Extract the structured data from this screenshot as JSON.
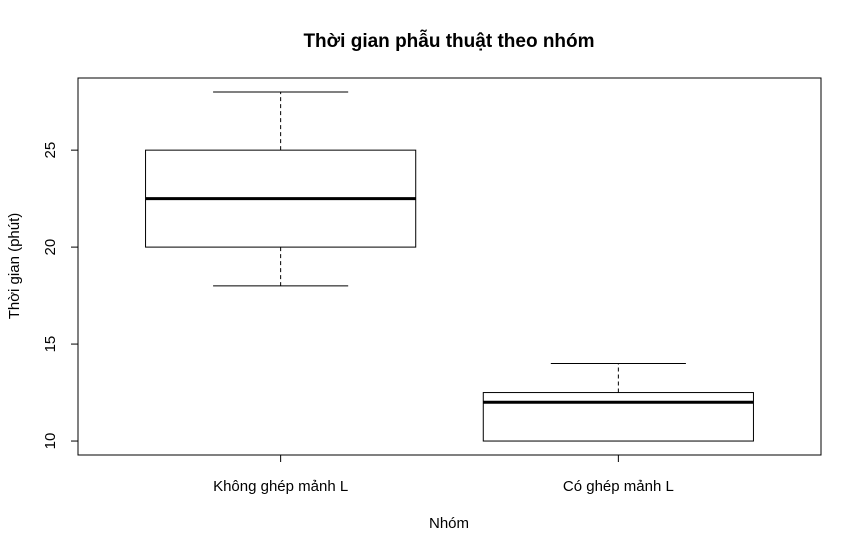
{
  "chart_data": {
    "type": "boxplot",
    "title": "Thời gian phẫu thuật theo nhóm",
    "xlabel": "Nhóm",
    "ylabel": "Thời gian (phút)",
    "categories": [
      "Không ghép mảnh L",
      "Có ghép mảnh L"
    ],
    "boxes": [
      {
        "name": "Không ghép mảnh L",
        "min": 18,
        "q1": 20,
        "median": 22.5,
        "q3": 25,
        "max": 28
      },
      {
        "name": "Có ghép mảnh L",
        "min": 10,
        "q1": 10,
        "median": 12,
        "q3": 12.5,
        "max": 14
      }
    ],
    "ylim": [
      9.28,
      28.72
    ],
    "yticks": [
      "10",
      "15",
      "20",
      "25"
    ],
    "grid": false,
    "legend": "none",
    "colors": {
      "box": "#000000",
      "median": "#000000",
      "background": "#ffffff"
    }
  }
}
